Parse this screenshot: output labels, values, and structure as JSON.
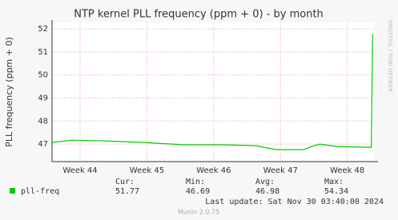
{
  "chart_data": {
    "type": "line",
    "title": "NTP kernel PLL frequency (ppm + 0) - by month",
    "y_label": "PLL frequency (ppm + 0)",
    "watermark": "RRDTOOL / TOBI OETIKER",
    "x": [
      43.58,
      43.88,
      44.36,
      44.96,
      45.56,
      46.16,
      46.63,
      46.93,
      47.35,
      47.47,
      47.59,
      47.83,
      48.31,
      48.36,
      48.38
    ],
    "series": [
      {
        "name": "pll-freq",
        "color": "#00cc00",
        "values": [
          47.07,
          47.17,
          47.14,
          47.07,
          46.97,
          46.97,
          46.93,
          46.76,
          46.76,
          46.9,
          47.0,
          46.9,
          46.86,
          46.86,
          51.77
        ]
      }
    ],
    "xlim": [
      43.58,
      48.4
    ],
    "xticks": [
      {
        "value": 44,
        "label": "Week 44"
      },
      {
        "value": 45,
        "label": "Week 45"
      },
      {
        "value": 46,
        "label": "Week 46"
      },
      {
        "value": 47,
        "label": "Week 47"
      },
      {
        "value": 48,
        "label": "Week 48"
      }
    ],
    "ylim": [
      46.24,
      52.28
    ],
    "yticks": [
      47,
      48,
      49,
      50,
      51,
      52
    ],
    "grid": true,
    "stats": [
      {
        "label": "Cur:",
        "value": 51.77
      },
      {
        "label": "Min:",
        "value": 46.69
      },
      {
        "label": "Avg:",
        "value": 46.98
      },
      {
        "label": "Max:",
        "value": 54.34
      }
    ],
    "last_update": "Last update: Sat Nov 30 03:40:00 2024",
    "footer": "Munin 2.0.75"
  }
}
